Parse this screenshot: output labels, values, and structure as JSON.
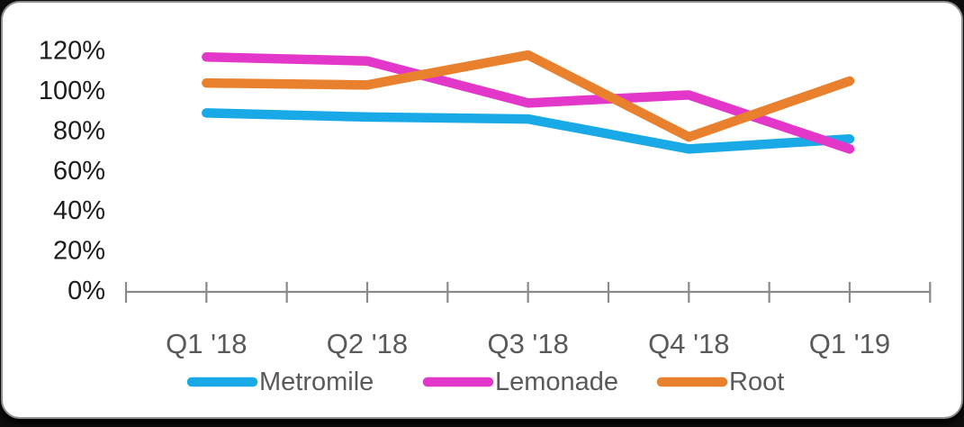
{
  "card": {
    "background": "#ffffff",
    "border_color": "#8f8f8f",
    "outside_background": "#0d0d0d"
  },
  "chart_data": {
    "type": "line",
    "title": "",
    "unit": "%",
    "categories": [
      "Q1 '18",
      "Q2 '18",
      "Q3 '18",
      "Q4 '18",
      "Q1 '19"
    ],
    "series": [
      {
        "name": "Metromile",
        "color": "#18A9E6",
        "values": [
          89,
          87,
          86,
          71,
          76
        ]
      },
      {
        "name": "Lemonade",
        "color": "#E337C9",
        "values": [
          117,
          115,
          94,
          98,
          71
        ]
      },
      {
        "name": "Root",
        "color": "#E8802E",
        "values": [
          104,
          103,
          118,
          77,
          105
        ]
      }
    ],
    "y_axis": {
      "min": 0,
      "max": 120,
      "step": 20,
      "tick_labels": [
        "0%",
        "20%",
        "40%",
        "60%",
        "80%",
        "100%",
        "120%"
      ]
    },
    "x_axis": {
      "tick_count": 11,
      "ticks_cross_axis": true
    },
    "legend": {
      "position": "bottom",
      "entries": [
        "Metromile",
        "Lemonade",
        "Root"
      ]
    },
    "grid": false,
    "colors": {
      "axis": "#8a8a8a",
      "x_label_text": "#595959",
      "y_label_text": "#1c1c1c",
      "legend_text": "#595959"
    }
  }
}
